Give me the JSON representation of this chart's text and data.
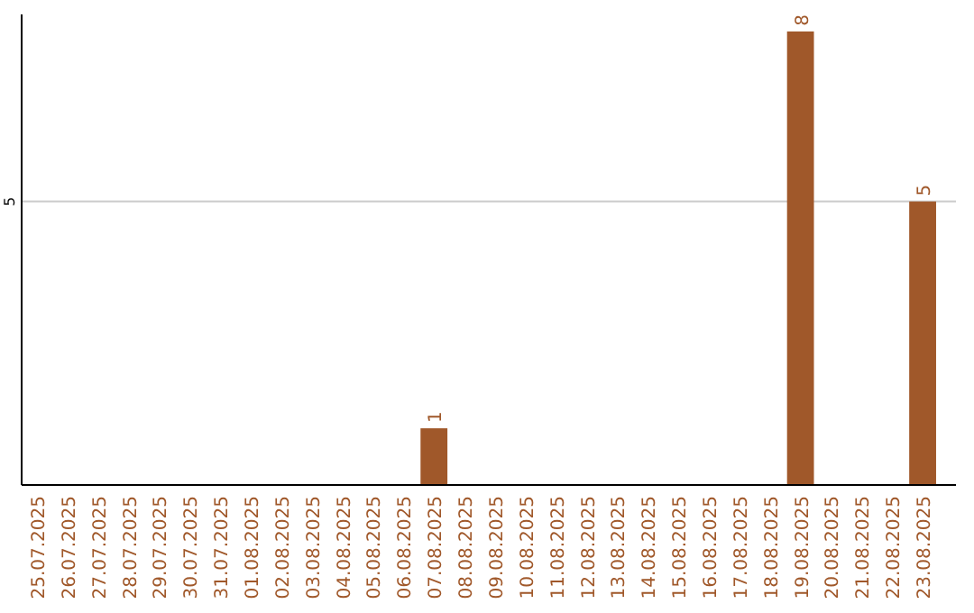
{
  "chart_data": {
    "type": "bar",
    "categories": [
      "25.07.2025",
      "26.07.2025",
      "27.07.2025",
      "28.07.2025",
      "29.07.2025",
      "30.07.2025",
      "31.07.2025",
      "01.08.2025",
      "02.08.2025",
      "03.08.2025",
      "04.08.2025",
      "05.08.2025",
      "06.08.2025",
      "07.08.2025",
      "08.08.2025",
      "09.08.2025",
      "10.08.2025",
      "11.08.2025",
      "12.08.2025",
      "13.08.2025",
      "14.08.2025",
      "15.08.2025",
      "16.08.2025",
      "17.08.2025",
      "18.08.2025",
      "19.08.2025",
      "20.08.2025",
      "21.08.2025",
      "22.08.2025",
      "23.08.2025"
    ],
    "values": [
      null,
      null,
      null,
      null,
      null,
      null,
      null,
      null,
      null,
      null,
      null,
      null,
      null,
      1,
      null,
      null,
      null,
      null,
      null,
      null,
      null,
      null,
      null,
      null,
      null,
      8,
      null,
      null,
      null,
      5
    ],
    "data_labels": true,
    "color": "#a0582a",
    "ylim": [
      0,
      8.3
    ],
    "yticks": [
      5
    ],
    "grid": "y"
  }
}
